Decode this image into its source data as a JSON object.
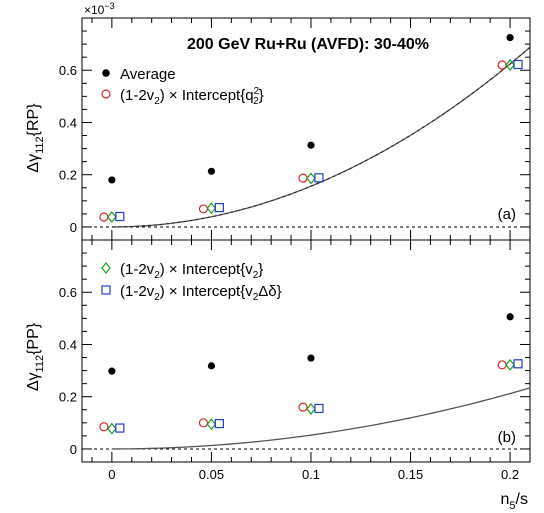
{
  "chart_data": [
    {
      "type": "scatter",
      "title": "200 GeV Ru+Ru (AVFD): 30-40%",
      "ylabel_main": "Δγ",
      "ylabel_sub": "112",
      "ylabel_suffix": "{RP}",
      "exponent_label": "×10",
      "exponent": "−3",
      "panel_label": "(a)",
      "ylim": [
        -0.05,
        0.8
      ],
      "yticks": [
        0,
        0.2,
        0.4,
        0.6
      ],
      "ytick_labels": [
        "0",
        "0.2",
        "0.4",
        "0.6"
      ],
      "x_nominal": [
        0,
        0.05,
        0.1,
        0.2
      ],
      "series": [
        {
          "name": "Average",
          "marker": "filled-circle",
          "color": "#000000",
          "offset": 0,
          "values": [
            0.18,
            0.213,
            0.313,
            0.725
          ]
        },
        {
          "name": "(1-2v2) × Intercept{q2^2}",
          "marker": "open-circle",
          "color": "#d62728",
          "offset": -0.004,
          "values": [
            0.038,
            0.069,
            0.187,
            0.62
          ]
        },
        {
          "name": "(1-2v2) × Intercept{v2}",
          "marker": "open-diamond",
          "color": "#1a9e1a",
          "offset": 0,
          "values": [
            0.038,
            0.072,
            0.186,
            0.62
          ]
        },
        {
          "name": "(1-2v2) × Intercept{v2Δδ}",
          "marker": "open-square",
          "color": "#1f3fd6",
          "offset": 0.004,
          "values": [
            0.04,
            0.074,
            0.188,
            0.622
          ]
        }
      ],
      "curve_coef": 15.6,
      "legend": [
        {
          "marker": "filled-circle",
          "color": "#000000",
          "text": "Average"
        },
        {
          "marker": "open-circle",
          "color": "#d62728",
          "pre": "(1-2v",
          "sub1": "2",
          "mid": ") × Intercept{q",
          "sup": "2",
          "sub2": "2",
          "post": "}"
        }
      ]
    },
    {
      "type": "scatter",
      "ylabel_main": "Δγ",
      "ylabel_sub": "112",
      "ylabel_suffix": "{PP}",
      "panel_label": "(b)",
      "xlabel_main": "n",
      "xlabel_sub": "5",
      "xlabel_suffix": "/s",
      "xlim": [
        -0.015,
        0.21
      ],
      "xticks": [
        0,
        0.05,
        0.1,
        0.15,
        0.2
      ],
      "xtick_labels": [
        "0",
        "0.05",
        "0.1",
        "0.15",
        "0.2"
      ],
      "ylim": [
        -0.05,
        0.8
      ],
      "yticks": [
        0,
        0.2,
        0.4,
        0.6
      ],
      "ytick_labels": [
        "0",
        "0.2",
        "0.4",
        "0.6"
      ],
      "x_nominal": [
        0,
        0.05,
        0.1,
        0.2
      ],
      "series": [
        {
          "name": "Average",
          "marker": "filled-circle",
          "color": "#000000",
          "offset": 0,
          "values": [
            0.298,
            0.318,
            0.348,
            0.506
          ]
        },
        {
          "name": "(1-2v2) × Intercept{q2^2}",
          "marker": "open-circle",
          "color": "#d62728",
          "offset": -0.004,
          "values": [
            0.085,
            0.1,
            0.16,
            0.322
          ]
        },
        {
          "name": "(1-2v2) × Intercept{v2}",
          "marker": "open-diamond",
          "color": "#1a9e1a",
          "offset": 0,
          "values": [
            0.078,
            0.095,
            0.153,
            0.322
          ]
        },
        {
          "name": "(1-2v2) × Intercept{v2Δδ}",
          "marker": "open-square",
          "color": "#1f3fd6",
          "offset": 0.004,
          "values": [
            0.08,
            0.097,
            0.155,
            0.326
          ]
        }
      ],
      "curve_coef": 5.3,
      "legend": [
        {
          "marker": "open-diamond",
          "color": "#1a9e1a",
          "pre": "(1-2v",
          "sub1": "2",
          "mid": ") × Intercept{v",
          "sub2": "2",
          "post": "}"
        },
        {
          "marker": "open-square",
          "color": "#1f3fd6",
          "pre": "(1-2v",
          "sub1": "2",
          "mid": ") × Intercept{v",
          "sub2": "2",
          "post": "Δδ}"
        }
      ]
    }
  ]
}
